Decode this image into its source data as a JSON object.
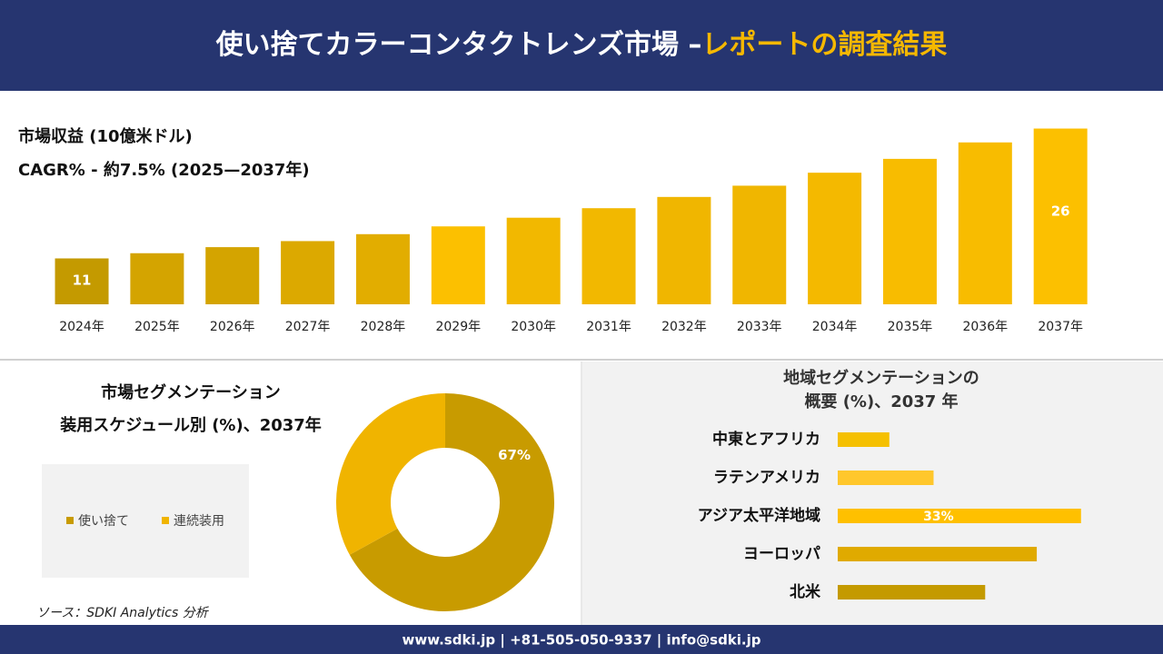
{
  "header": {
    "title_main": "使い捨てカラーコンタクトレンズ市場 –",
    "title_accent": "レポートの調査結果"
  },
  "chart_data": [
    {
      "type": "bar",
      "title": "市場収益 (10億米ドル)",
      "subtitle": "CAGR% - 約7.5% (2025—2037年)",
      "categories": [
        "2024年",
        "2025年",
        "2026年",
        "2027年",
        "2028年",
        "2029年",
        "2030年",
        "2031年",
        "2032年",
        "2033年",
        "2034年",
        "2035年",
        "2036年",
        "2037年"
      ],
      "values": [
        11,
        11.6,
        12.3,
        13.0,
        13.8,
        14.7,
        15.7,
        16.8,
        18.1,
        19.4,
        20.9,
        22.5,
        24.4,
        26
      ],
      "value_labels": [
        "11",
        null,
        null,
        null,
        null,
        null,
        null,
        null,
        null,
        null,
        null,
        null,
        null,
        "26"
      ],
      "colors": [
        "#c49a00",
        "#d4a400",
        "#d4a400",
        "#dca900",
        "#e2ad00",
        "#fcc000",
        "#f2b800",
        "#f2b800",
        "#f0b600",
        "#f0b600",
        "#f4b900",
        "#f8bc00",
        "#f8bc00",
        "#fcc000"
      ],
      "ylim": [
        5.7,
        27
      ]
    },
    {
      "type": "pie",
      "title": "市場セグメンテーション",
      "subtitle": "装用スケジュール別 (%)、2037年",
      "categories": [
        "使い捨て",
        "連続装用"
      ],
      "values": [
        67,
        33
      ],
      "value_labels": [
        "67%",
        null
      ],
      "colors": [
        "#c89b00",
        "#f0b400"
      ],
      "legend": "left"
    },
    {
      "type": "bar",
      "orientation": "horizontal",
      "title": "地域セグメンテーションの",
      "subtitle": "概要 (%)、2037 年",
      "categories": [
        "中東とアフリカ",
        "ラテンアメリカ",
        "アジア太平洋地域",
        "ヨーロッパ",
        "北米"
      ],
      "values": [
        7,
        13,
        33,
        27,
        20
      ],
      "value_labels": [
        null,
        null,
        "33%",
        null,
        null
      ],
      "colors": [
        "#f5c000",
        "#ffc72c",
        "#ffc000",
        "#e0aa00",
        "#c49a00"
      ],
      "xlim": [
        0,
        35
      ]
    }
  ],
  "source": "ソース：SDKI Analytics 分析",
  "footer": "www.sdki.jp | +81-505-050-9337 | info@sdki.jp"
}
